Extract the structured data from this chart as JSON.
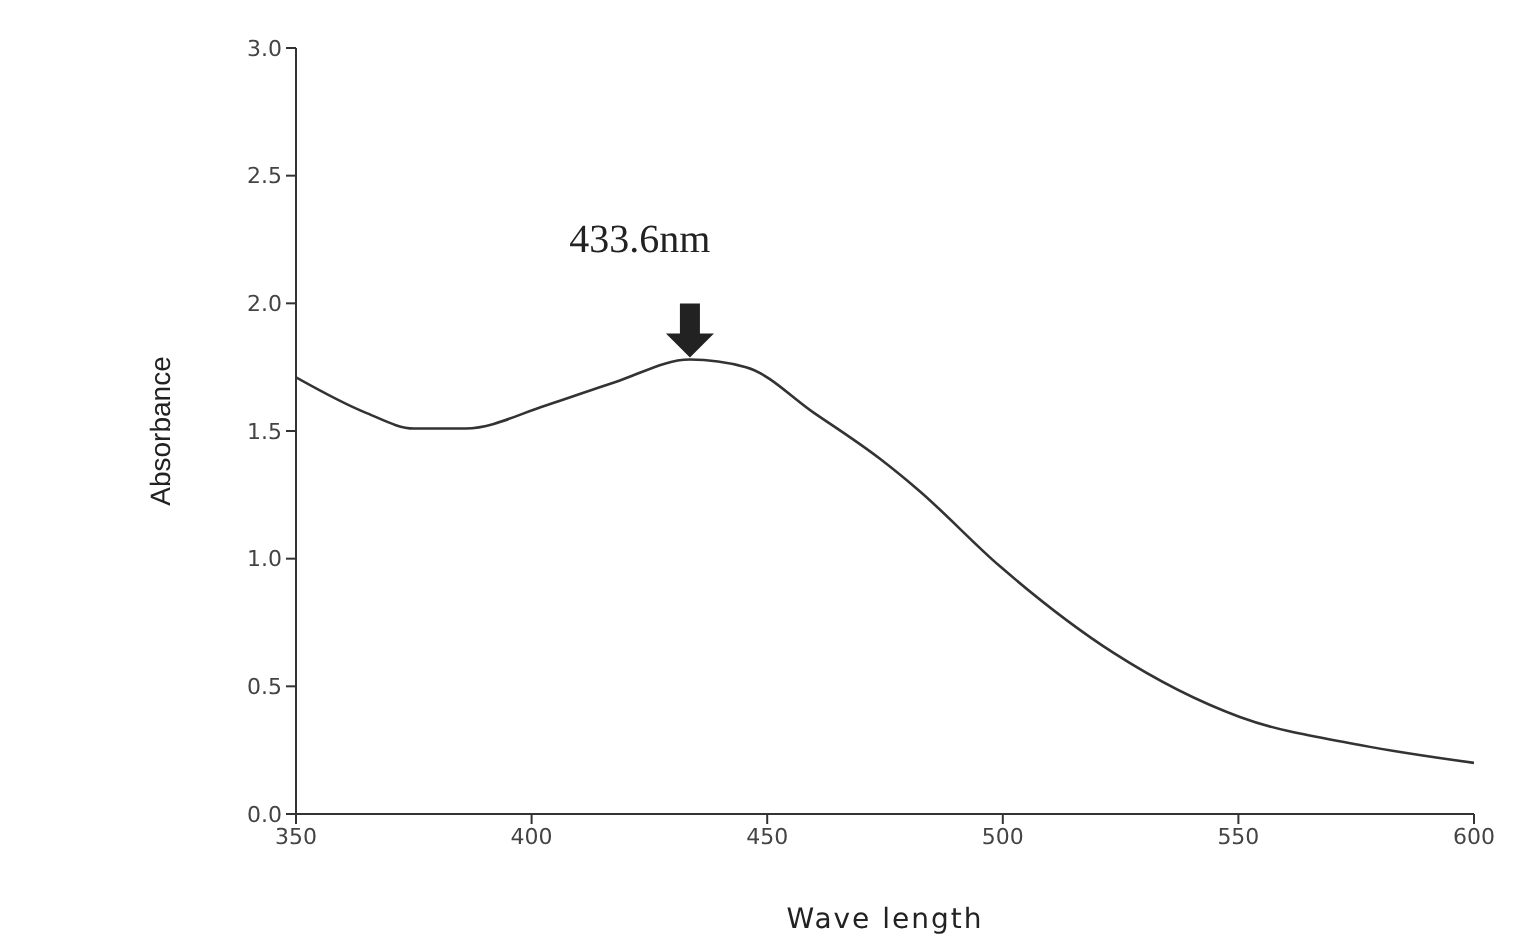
{
  "chart_data": {
    "type": "line",
    "xlabel": "Wave length",
    "ylabel": "Absorbance",
    "x": [
      350,
      365,
      375,
      386,
      403,
      417.5,
      433.6,
      445.5,
      460,
      474,
      482,
      499.4,
      523.6,
      550.3,
      575.8,
      600
    ],
    "series": [
      {
        "color": "#333333",
        "values": [
          1.71,
          1.57,
          1.51,
          1.51,
          1.6,
          1.69,
          1.78,
          1.75,
          1.57,
          1.39,
          1.27,
          0.97,
          0.63,
          0.38,
          0.27,
          0.2
        ]
      }
    ],
    "xlim": [
      350,
      600
    ],
    "xticks": [
      350,
      400,
      450,
      500,
      550,
      600
    ],
    "ylim": [
      0,
      3
    ],
    "yticks": [
      {
        "value": 0,
        "label": "0.0"
      },
      {
        "value": 0.5,
        "label": "0.5"
      },
      {
        "value": 1,
        "label": "1.0"
      },
      {
        "value": 1.5,
        "label": "1.5"
      },
      {
        "value": 2,
        "label": "2.0"
      },
      {
        "value": 2.5,
        "label": "2.5"
      },
      {
        "value": 3,
        "label": "3.0"
      }
    ],
    "annotations": [
      {
        "text": "433.6nm",
        "x": 433.6,
        "y": 1.78
      }
    ],
    "grid": false,
    "legend": false,
    "marker": "none",
    "line_style": "solid"
  }
}
